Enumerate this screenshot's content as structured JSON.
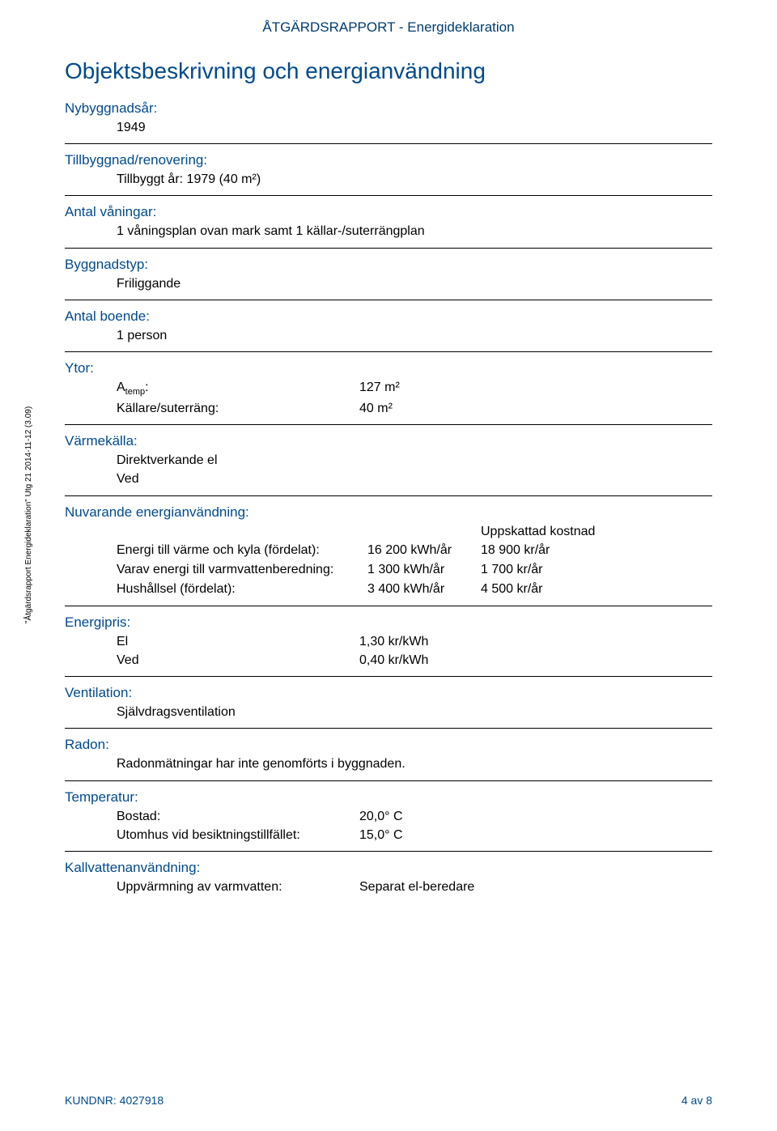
{
  "colors": {
    "heading": "#004a8c",
    "pretitle": "#003b6f",
    "text": "#000000",
    "rule": "#000000",
    "background": "#ffffff"
  },
  "typography": {
    "main_title_size_pt": 21,
    "section_label_size_pt": 13,
    "body_size_pt": 12,
    "footer_size_pt": 10,
    "side_size_pt": 8
  },
  "pre_title": "ÅTGÄRDSRAPPORT - Energideklaration",
  "main_title": "Objektsbeskrivning och energianvändning",
  "sections": {
    "nybyggnadsar": {
      "label": "Nybyggnadsår:",
      "value": "1949"
    },
    "tillbyggnad": {
      "label": "Tillbyggnad/renovering:",
      "value": "Tillbyggt år: 1979 (40  m²)"
    },
    "antal_vaningar": {
      "label": "Antal våningar:",
      "value": "1 våningsplan ovan mark samt 1 källar-/suterrängplan"
    },
    "byggnadstyp": {
      "label": "Byggnadstyp:",
      "value": "Friliggande"
    },
    "antal_boende": {
      "label": "Antal boende:",
      "value": "1 person"
    },
    "ytor": {
      "label": "Ytor:",
      "rows": [
        {
          "key_prefix": "A",
          "key_sub": "temp",
          "key_suffix": ":",
          "val": "127  m²"
        },
        {
          "key": "Källare/suterräng:",
          "val": "40  m²"
        }
      ]
    },
    "varmekalla": {
      "label": "Värmekälla:",
      "values": [
        "Direktverkande el",
        "Ved"
      ]
    },
    "nuvarande": {
      "label": "Nuvarande energianvändning:",
      "cost_header": "Uppskattad kostnad",
      "rows": [
        {
          "label": "Energi till värme och kyla (fördelat):",
          "amount": "16 200 kWh/år",
          "cost": "18 900 kr/år"
        },
        {
          "label": "Varav energi till varmvattenberedning:",
          "amount": "1 300 kWh/år",
          "cost": "1 700 kr/år"
        },
        {
          "label": "Hushållsel (fördelat):",
          "amount": "3 400 kWh/år",
          "cost": "4 500 kr/år"
        }
      ]
    },
    "energipris": {
      "label": "Energipris:",
      "rows": [
        {
          "key": "El",
          "val": "1,30 kr/kWh"
        },
        {
          "key": "Ved",
          "val": "0,40 kr/kWh"
        }
      ]
    },
    "ventilation": {
      "label": "Ventilation:",
      "value": "Självdragsventilation"
    },
    "radon": {
      "label": "Radon:",
      "value": "Radonmätningar har inte genomförts i byggnaden."
    },
    "temperatur": {
      "label": "Temperatur:",
      "rows": [
        {
          "key": "Bostad:",
          "val": "20,0° C"
        },
        {
          "key": "Utomhus vid besiktningstillfället:",
          "val": "15,0° C"
        }
      ]
    },
    "kallvatten": {
      "label": "Kallvattenanvändning:",
      "rows": [
        {
          "key": "Uppvärmning av varmvatten:",
          "val": "Separat el-beredare"
        }
      ]
    }
  },
  "side_text": "\"Åtgärdsrapport Energideklaration\" Utg 21 2014-11-12 (3.09)",
  "footer": {
    "left": "KUNDNR: 4027918",
    "right": "4 av 8"
  }
}
